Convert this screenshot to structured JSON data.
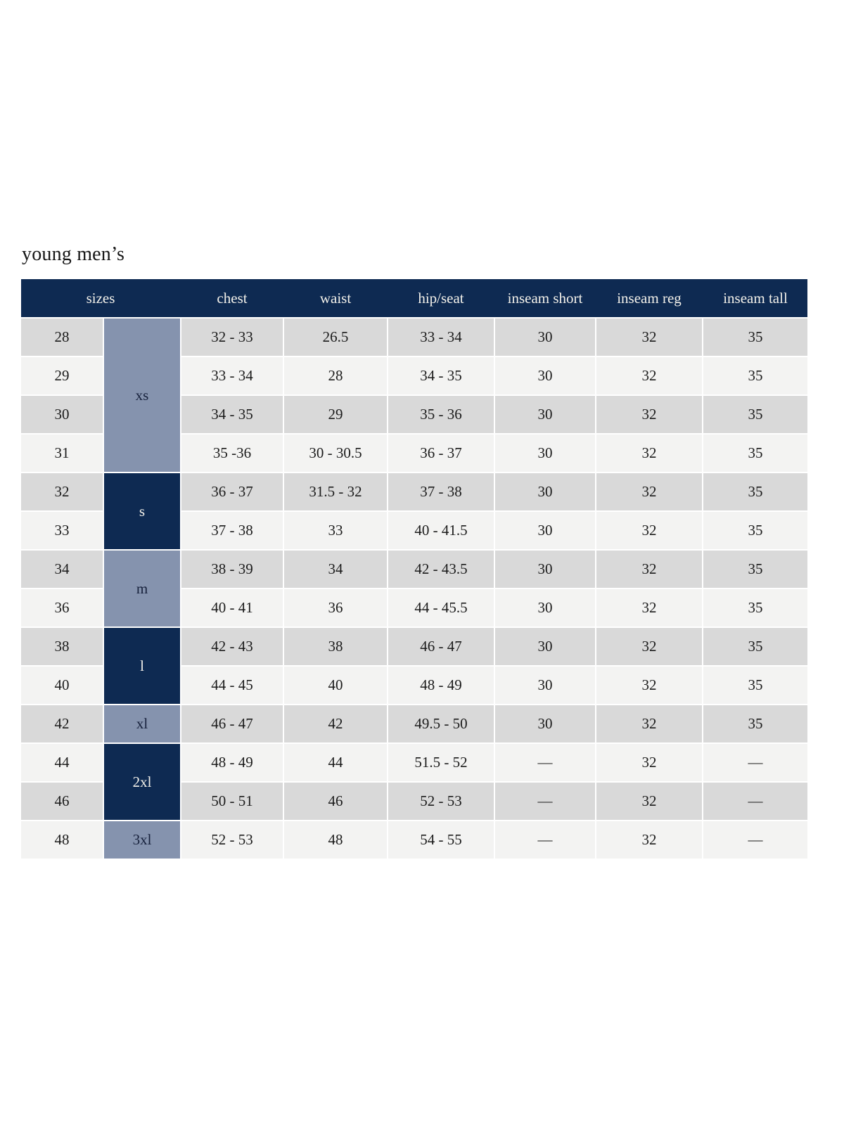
{
  "page": {
    "title": "young men’s"
  },
  "table": {
    "header": {
      "sizes": "sizes",
      "chest": "chest",
      "waist": "waist",
      "hip_seat": "hip/seat",
      "inseam_short": "inseam short",
      "inseam_reg": "inseam reg",
      "inseam_tall": "inseam tall"
    },
    "groups": [
      {
        "label": "xs",
        "spans_sizes": [
          "28",
          "29",
          "30",
          "31"
        ],
        "style": "steel"
      },
      {
        "label": "s",
        "spans_sizes": [
          "32",
          "33"
        ],
        "style": "navy"
      },
      {
        "label": "m",
        "spans_sizes": [
          "34",
          "36"
        ],
        "style": "steel"
      },
      {
        "label": "l",
        "spans_sizes": [
          "38",
          "40"
        ],
        "style": "navy"
      },
      {
        "label": "xl",
        "spans_sizes": [
          "42"
        ],
        "style": "steel"
      },
      {
        "label": "2xl",
        "spans_sizes": [
          "44",
          "46"
        ],
        "style": "navy"
      },
      {
        "label": "3xl",
        "spans_sizes": [
          "48"
        ],
        "style": "steel"
      }
    ],
    "rows": [
      {
        "size": "28",
        "chest": "32 - 33",
        "waist": "26.5",
        "hip_seat": "33 - 34",
        "inseam_short": "30",
        "inseam_reg": "32",
        "inseam_tall": "35"
      },
      {
        "size": "29",
        "chest": "33 - 34",
        "waist": "28",
        "hip_seat": "34 - 35",
        "inseam_short": "30",
        "inseam_reg": "32",
        "inseam_tall": "35"
      },
      {
        "size": "30",
        "chest": "34 - 35",
        "waist": "29",
        "hip_seat": "35 - 36",
        "inseam_short": "30",
        "inseam_reg": "32",
        "inseam_tall": "35"
      },
      {
        "size": "31",
        "chest": "35 -36",
        "waist": "30 - 30.5",
        "hip_seat": "36 - 37",
        "inseam_short": "30",
        "inseam_reg": "32",
        "inseam_tall": "35"
      },
      {
        "size": "32",
        "chest": "36 - 37",
        "waist": "31.5 - 32",
        "hip_seat": "37 - 38",
        "inseam_short": "30",
        "inseam_reg": "32",
        "inseam_tall": "35"
      },
      {
        "size": "33",
        "chest": "37 - 38",
        "waist": "33",
        "hip_seat": "40 - 41.5",
        "inseam_short": "30",
        "inseam_reg": "32",
        "inseam_tall": "35"
      },
      {
        "size": "34",
        "chest": "38 - 39",
        "waist": "34",
        "hip_seat": "42 - 43.5",
        "inseam_short": "30",
        "inseam_reg": "32",
        "inseam_tall": "35"
      },
      {
        "size": "36",
        "chest": "40 - 41",
        "waist": "36",
        "hip_seat": "44 - 45.5",
        "inseam_short": "30",
        "inseam_reg": "32",
        "inseam_tall": "35"
      },
      {
        "size": "38",
        "chest": "42 - 43",
        "waist": "38",
        "hip_seat": "46 - 47",
        "inseam_short": "30",
        "inseam_reg": "32",
        "inseam_tall": "35"
      },
      {
        "size": "40",
        "chest": "44 - 45",
        "waist": "40",
        "hip_seat": "48 - 49",
        "inseam_short": "30",
        "inseam_reg": "32",
        "inseam_tall": "35"
      },
      {
        "size": "42",
        "chest": "46 - 47",
        "waist": "42",
        "hip_seat": "49.5 - 50",
        "inseam_short": "30",
        "inseam_reg": "32",
        "inseam_tall": "35"
      },
      {
        "size": "44",
        "chest": "48 - 49",
        "waist": "44",
        "hip_seat": "51.5 - 52",
        "inseam_short": "—",
        "inseam_reg": "32",
        "inseam_tall": "—"
      },
      {
        "size": "46",
        "chest": "50 - 51",
        "waist": "46",
        "hip_seat": "52 - 53",
        "inseam_short": "—",
        "inseam_reg": "32",
        "inseam_tall": "—"
      },
      {
        "size": "48",
        "chest": "52 - 53",
        "waist": "48",
        "hip_seat": "54 - 55",
        "inseam_short": "—",
        "inseam_reg": "32",
        "inseam_tall": "—"
      }
    ],
    "colors": {
      "header_navy": "#0e2a52",
      "group_steel_blue": "#8593ae",
      "row_stripe_dark": "#d9d9d9",
      "row_stripe_light": "#f3f3f2",
      "header_text": "#f3f1ea",
      "body_text": "#1b1b1b"
    }
  }
}
